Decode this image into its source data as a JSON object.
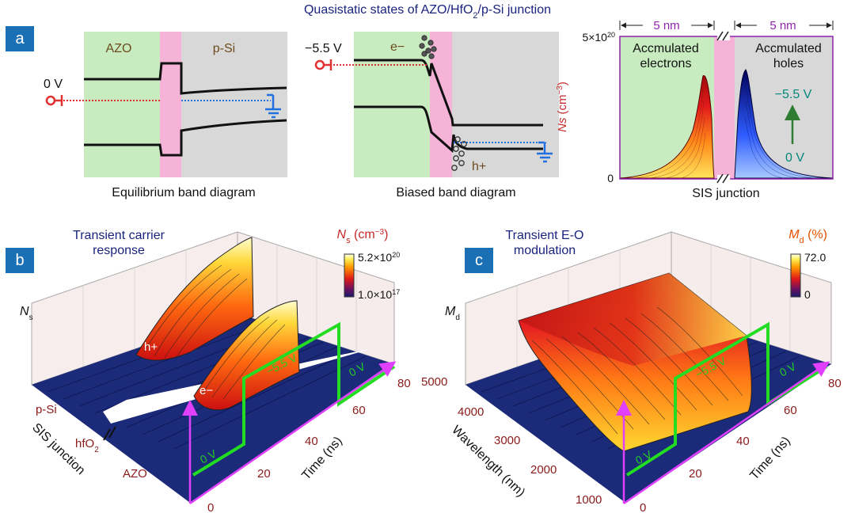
{
  "title": {
    "pre": "Quasistatic states of AZO/HfO",
    "sub": "2",
    "post": "/p-Si junction"
  },
  "panel_labels": {
    "a": "a",
    "b": "b",
    "c": "c"
  },
  "band_eq": {
    "azo": "AZO",
    "psi": "p-Si",
    "bias": "0 V",
    "caption": "Equilibrium band diagram"
  },
  "band_biased": {
    "bias": "−5.5 V",
    "electron": "e−",
    "hole": "h+",
    "caption": "Biased band diagram"
  },
  "sis": {
    "width_left": "5 nm",
    "width_right": "5 nm",
    "ymax": "5×10",
    "ymax_exp": "20",
    "ymin": "0",
    "ylabel_main": "Ns",
    "ylabel_unit": "(cm",
    "ylabel_exp": "−3",
    "ylabel_close": ")",
    "left_label_1": "Accmulated",
    "left_label_2": "electrons",
    "right_label_1": "Accmulated",
    "right_label_2": "holes",
    "arrow_top": "−5.5 V",
    "arrow_bottom": "0 V",
    "xlabel": "SIS junction"
  },
  "panel_b": {
    "title_1": "Transient carrier",
    "title_2": "response",
    "cbar_title_pre": "N",
    "cbar_title_sub": "s",
    "cbar_title_post": " (cm",
    "cbar_title_exp": "−3",
    "cbar_title_close": ")",
    "cbar_max_pre": "5.2×10",
    "cbar_max_exp": "20",
    "cbar_min_pre": "1.0×10",
    "cbar_min_exp": "17",
    "zlabel_pre": "N",
    "zlabel_sub": "s",
    "peak_hole": "h+",
    "peak_electron": "e−",
    "pulse_low_1": "0 V",
    "pulse_high": "−5.5 V",
    "pulse_low_2": "0 V",
    "axis_left": "SIS junction",
    "axis_left_ticks": [
      "p-Si",
      "hfO",
      "AZO"
    ],
    "hfo_sub": "2",
    "axis_right": "Time (ns)",
    "time_ticks": [
      "0",
      "20",
      "40",
      "60",
      "80"
    ]
  },
  "panel_c": {
    "title_1": "Transient E-O",
    "title_2": "modulation",
    "cbar_title_pre": "M",
    "cbar_title_sub": "d",
    "cbar_title_post": " (%)",
    "cbar_max": "72.0",
    "cbar_min": "0",
    "zlabel_pre": "M",
    "zlabel_sub": "d",
    "pulse_low_1": "0 V",
    "pulse_high": "−5.5 V",
    "pulse_low_2": "0 V",
    "axis_left": "Wavelength (nm)",
    "wl_ticks": [
      "5000",
      "4000",
      "3000",
      "2000",
      "1000"
    ],
    "axis_right": "Time (ns)",
    "time_ticks": [
      "0",
      "20",
      "40",
      "60",
      "80"
    ]
  },
  "colors": {
    "azo_bg": "#c8ecc0",
    "hfo_bg": "#f6b3d8",
    "psi_bg": "#d8d8d8",
    "electron_red": "#d62020",
    "ground_blue": "#1f6fe0",
    "title_navy": "#1a237e",
    "label_red": "#c62828",
    "magenta": "#e040fb",
    "pulse_green": "#22dd22",
    "floor_navy": "#1c2a7a",
    "badge_blue": "#1a6fb5"
  }
}
